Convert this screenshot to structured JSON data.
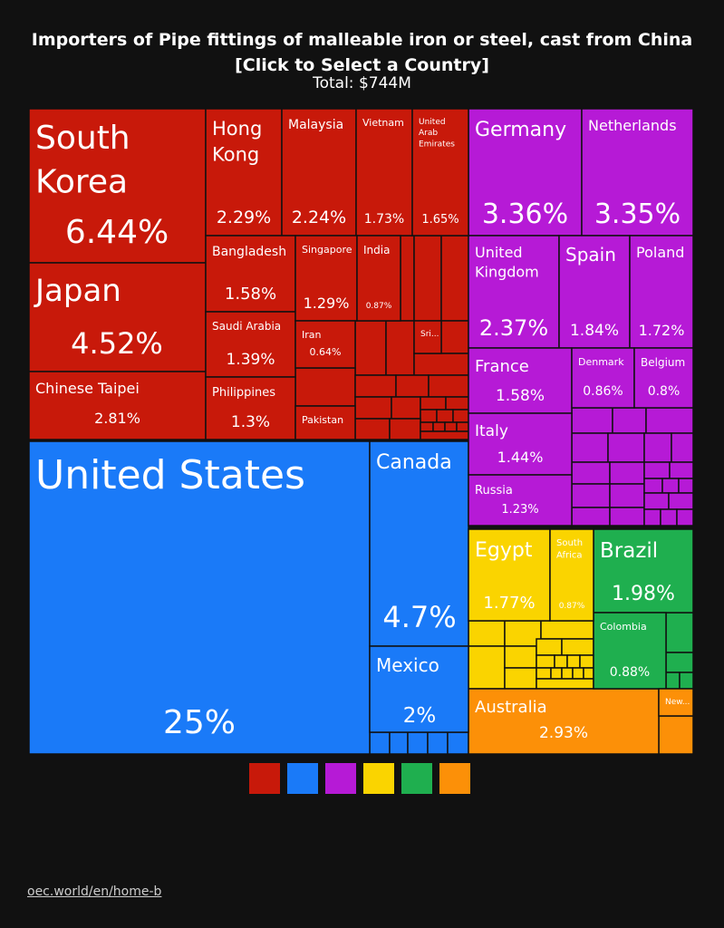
{
  "header": {
    "title": "Importers of Pipe fittings of malleable iron or steel, cast from China",
    "subtitle": "[Click to Select a Country]",
    "total": "Total: $744M"
  },
  "colors": {
    "asia": "#c8190a",
    "north_america": "#1a7af8",
    "europe": "#b61ad6",
    "africa": "#fad400",
    "south_america": "#1faf4f",
    "oceania": "#fc9008"
  },
  "legend": [
    "asia",
    "north_america",
    "europe",
    "africa",
    "south_america",
    "oceania"
  ],
  "footer": {
    "source": "oec.world/en/home-b"
  },
  "chart_data": {
    "type": "treemap",
    "title": "Importers of Pipe fittings of malleable iron or steel, cast from China",
    "total": "$744M",
    "unit": "percent of total",
    "items": [
      {
        "name": "United States",
        "value": 25,
        "label": "25%",
        "group": "north_america"
      },
      {
        "name": "South Korea",
        "value": 6.44,
        "label": "6.44%",
        "group": "asia"
      },
      {
        "name": "Canada",
        "value": 4.7,
        "label": "4.7%",
        "group": "north_america"
      },
      {
        "name": "Japan",
        "value": 4.52,
        "label": "4.52%",
        "group": "asia"
      },
      {
        "name": "Germany",
        "value": 3.36,
        "label": "3.36%",
        "group": "europe"
      },
      {
        "name": "Netherlands",
        "value": 3.35,
        "label": "3.35%",
        "group": "europe"
      },
      {
        "name": "Australia",
        "value": 2.93,
        "label": "2.93%",
        "group": "oceania"
      },
      {
        "name": "Chinese Taipei",
        "value": 2.81,
        "label": "2.81%",
        "group": "asia"
      },
      {
        "name": "United Kingdom",
        "value": 2.37,
        "label": "2.37%",
        "group": "europe"
      },
      {
        "name": "Hong Kong",
        "value": 2.29,
        "label": "2.29%",
        "group": "asia"
      },
      {
        "name": "Malaysia",
        "value": 2.24,
        "label": "2.24%",
        "group": "asia"
      },
      {
        "name": "Mexico",
        "value": 2,
        "label": "2%",
        "group": "north_america"
      },
      {
        "name": "Brazil",
        "value": 1.98,
        "label": "1.98%",
        "group": "south_america"
      },
      {
        "name": "Spain",
        "value": 1.84,
        "label": "1.84%",
        "group": "europe"
      },
      {
        "name": "Egypt",
        "value": 1.77,
        "label": "1.77%",
        "group": "africa"
      },
      {
        "name": "Vietnam",
        "value": 1.73,
        "label": "1.73%",
        "group": "asia"
      },
      {
        "name": "Poland",
        "value": 1.72,
        "label": "1.72%",
        "group": "europe"
      },
      {
        "name": "United Arab Emirates",
        "value": 1.65,
        "label": "1.65%",
        "group": "asia"
      },
      {
        "name": "Bangladesh",
        "value": 1.58,
        "label": "1.58%",
        "group": "asia"
      },
      {
        "name": "France",
        "value": 1.58,
        "label": "1.58%",
        "group": "europe"
      },
      {
        "name": "Italy",
        "value": 1.44,
        "label": "1.44%",
        "group": "europe"
      },
      {
        "name": "Saudi Arabia",
        "value": 1.39,
        "label": "1.39%",
        "group": "asia"
      },
      {
        "name": "Philippines",
        "value": 1.3,
        "label": "1.3%",
        "group": "asia"
      },
      {
        "name": "Singapore",
        "value": 1.29,
        "label": "1.29%",
        "group": "asia"
      },
      {
        "name": "Russia",
        "value": 1.23,
        "label": "1.23%",
        "group": "europe"
      },
      {
        "name": "Colombia",
        "value": 0.88,
        "label": "0.88%",
        "group": "south_america"
      },
      {
        "name": "India",
        "value": 0.87,
        "label": "0.87%",
        "group": "asia"
      },
      {
        "name": "South Africa",
        "value": 0.87,
        "label": "0.87%",
        "group": "africa"
      },
      {
        "name": "Denmark",
        "value": 0.86,
        "label": "0.86%",
        "group": "europe"
      },
      {
        "name": "Belgium",
        "value": 0.8,
        "label": "0.8%",
        "group": "europe"
      },
      {
        "name": "Iran",
        "value": 0.64,
        "label": "0.64%",
        "group": "asia"
      },
      {
        "name": "Pakistan",
        "group": "asia"
      },
      {
        "name": "Sri...",
        "group": "asia"
      },
      {
        "name": "New...",
        "group": "oceania"
      }
    ]
  }
}
